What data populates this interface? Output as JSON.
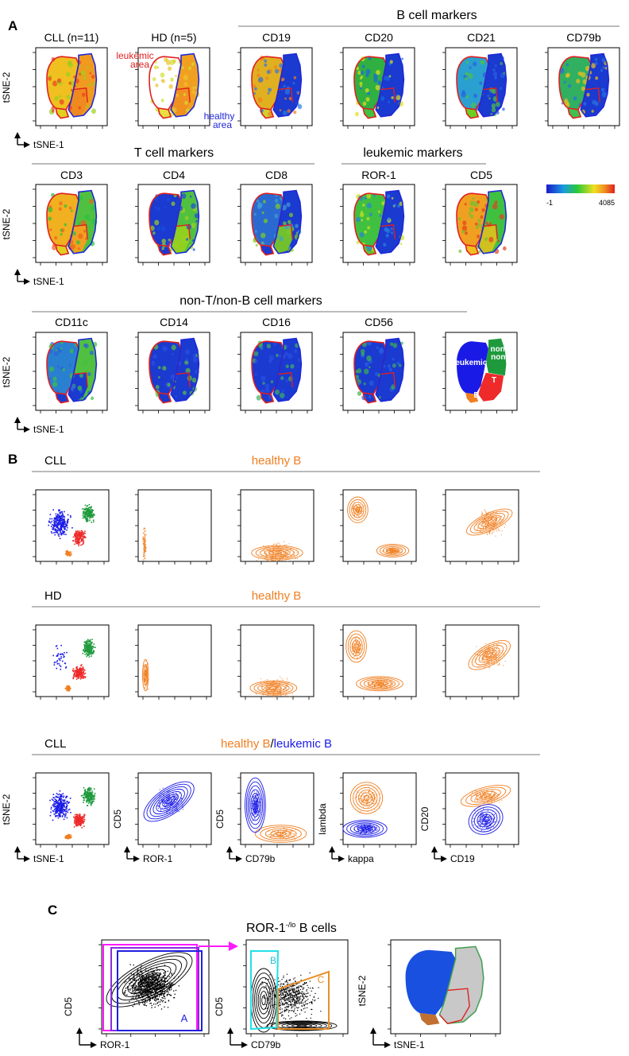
{
  "panel_letters": {
    "a": "A",
    "b": "B",
    "c": "C"
  },
  "section_a": {
    "group_b_cell": "B cell markers",
    "group_t_cell": "T cell markers",
    "group_leukemic": "leukemic markers",
    "group_non_tb": "non-T/non-B cell markers",
    "row1_titles": [
      "CLL (n=11)",
      "HD (n=5)",
      "CD19",
      "CD20",
      "CD21",
      "CD79b"
    ],
    "row2_titles": [
      "CD3",
      "CD4",
      "CD8",
      "ROR-1",
      "CD5"
    ],
    "row3_titles": [
      "CD11c",
      "CD14",
      "CD16",
      "CD56"
    ],
    "axis_x": "tSNE-1",
    "axis_y": "tSNE-2",
    "leukemic_area": [
      "leukemic",
      "area"
    ],
    "healthy_area": [
      "healthy",
      "area"
    ],
    "colorbar": {
      "min": "-1",
      "max": "4085"
    },
    "cluster_labels": {
      "leukemic": "leukemic",
      "non_b": "non-B",
      "non_t": "non-T",
      "t": "T",
      "b": "B"
    }
  },
  "section_b": {
    "block_labels": [
      "CLL",
      "HD",
      "CLL"
    ],
    "block_titles_orange": [
      "healthy B",
      "healthy B",
      "healthy B"
    ],
    "block_title_slash": "/",
    "block_title_blue": "leukemic B",
    "tsne_x": "tSNE-1",
    "tsne_y": "tSNE-2",
    "bivariate": [
      {
        "x": "ROR-1",
        "y": "CD5"
      },
      {
        "x": "CD79b",
        "y": "CD5"
      },
      {
        "x": "kappa",
        "y": "lambda"
      },
      {
        "x": "CD19",
        "y": "CD20"
      }
    ]
  },
  "section_c": {
    "title_main": "ROR-1",
    "title_sup": "-/lo",
    "title_rest": " B cells",
    "plot1": {
      "x": "ROR-1",
      "y": "CD5",
      "gate": "A"
    },
    "plot2": {
      "x": "CD79b",
      "y": "CD5",
      "gate_b": "B",
      "gate_c": "C"
    },
    "plot3": {
      "x": "tSNE-1",
      "y": "tSNE-2"
    }
  },
  "colors": {
    "healthy_b": "#f07f21",
    "leukemic_b": "#1a1ae6",
    "leukemic_outline": "#e02020",
    "healthy_outline": "#1f28d8",
    "non_b_cluster": "#1e9a3c",
    "t_cluster": "#ee2a2a",
    "gate_magenta": "#ff1aff",
    "gate_purple": "#8a2be2",
    "gate_cyan": "#22e0e8",
    "gate_orange": "#e8902a"
  }
}
